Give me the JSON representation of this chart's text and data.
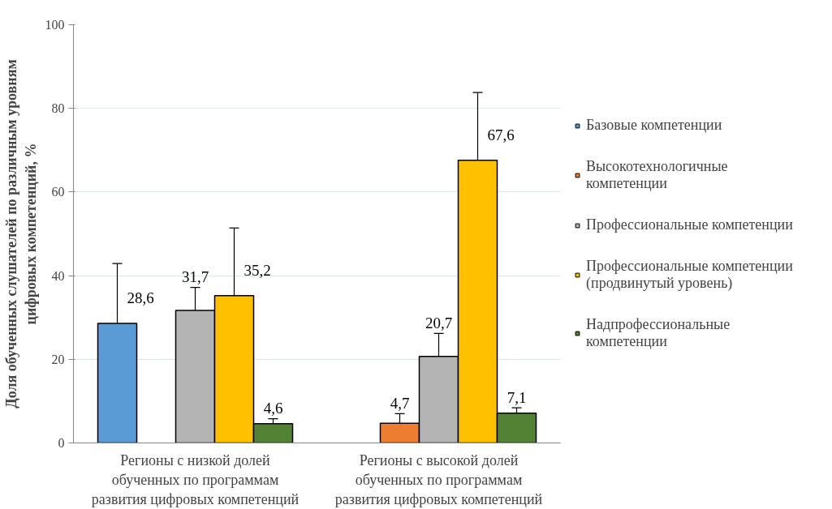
{
  "chart_data": {
    "type": "bar",
    "ylabel": "Доля обученных слушателей по различным уровням цифровых компетенций, %",
    "categories": [
      "Регионы с низкой долей обученных по программам развития цифровых компетенций",
      "Регионы с высокой долей обученных по программам развития цифровых компетенций"
    ],
    "series": [
      {
        "name": "Базовые компетенции",
        "color": "#5b9bd5",
        "values": [
          28.6,
          null
        ],
        "errors": [
          14.3,
          null
        ],
        "value_labels": [
          "28,6",
          null
        ]
      },
      {
        "name": "Высокотехнологичные компетенции",
        "color": "#ed7d31",
        "values": [
          null,
          4.7
        ],
        "errors": [
          null,
          2.3
        ],
        "value_labels": [
          null,
          "4,7"
        ]
      },
      {
        "name": "Профессиональные компетенции",
        "color": "#b4b4b4",
        "values": [
          31.7,
          20.7
        ],
        "errors": [
          5.5,
          5.5
        ],
        "value_labels": [
          "31,7",
          "20,7"
        ]
      },
      {
        "name": "Профессиональные компетенции (продвинутый уровень)",
        "color": "#ffc000",
        "values": [
          35.2,
          67.6
        ],
        "errors": [
          16.2,
          16.2
        ],
        "value_labels": [
          "35,2",
          "67,6"
        ]
      },
      {
        "name": "Надпрофессиональные компетенции",
        "color": "#548235",
        "values": [
          4.6,
          7.1
        ],
        "errors": [
          1.2,
          1.3
        ],
        "value_labels": [
          "4,6",
          "7,1"
        ]
      }
    ],
    "ylim": [
      0,
      100
    ],
    "yticks": [
      0,
      20,
      40,
      60,
      80,
      100
    ],
    "grid": "y",
    "legend": "right"
  }
}
